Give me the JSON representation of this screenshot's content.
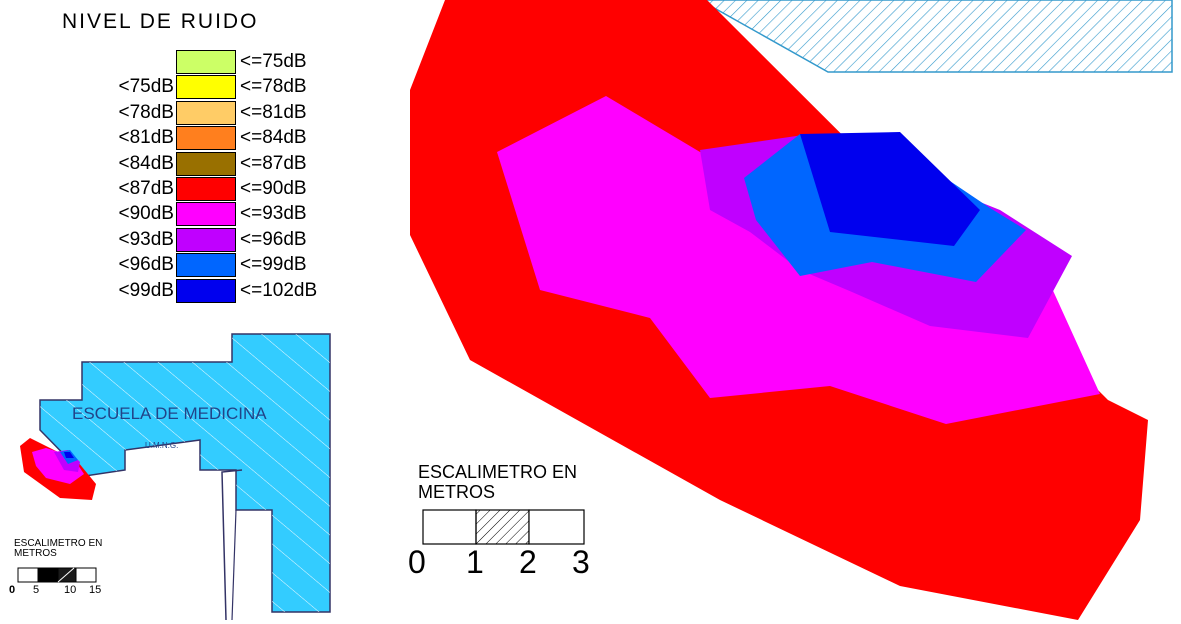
{
  "legend": {
    "title": "NIVEL DE RUIDO",
    "items": [
      {
        "low": "",
        "high": "<=75dB",
        "color": "#ccff66"
      },
      {
        "low": "<75dB",
        "high": "<=78dB",
        "color": "#ffff00"
      },
      {
        "low": "<78dB",
        "high": "<=81dB",
        "color": "#ffcc66"
      },
      {
        "low": "<81dB",
        "high": "<=84dB",
        "color": "#ff7f1e"
      },
      {
        "low": "<84dB",
        "high": "<=87dB",
        "color": "#997000"
      },
      {
        "low": "<87dB",
        "high": "<=90dB",
        "color": "#ff0000"
      },
      {
        "low": "<90dB",
        "high": "<=93dB",
        "color": "#ff00ff"
      },
      {
        "low": "<93dB",
        "high": "<=96dB",
        "color": "#c000ff"
      },
      {
        "low": "<96dB",
        "high": "<=99dB",
        "color": "#0066ff"
      },
      {
        "low": "<99dB",
        "high": "<=102dB",
        "color": "#0000ee"
      }
    ]
  },
  "building": {
    "name": "ESCUELA DE MEDICINA",
    "subtitle": "U.M.N.G.",
    "color": "#33ccff"
  },
  "small_scale": {
    "label_line1": "ESCALIMETRO EN",
    "label_line2": "METROS",
    "ticks": [
      "0",
      "5",
      "10",
      "15"
    ]
  },
  "big_scale": {
    "label_line1": "ESCALIMETRO EN",
    "label_line2": "METROS",
    "ticks": [
      "0",
      "1",
      "2",
      "3"
    ]
  },
  "hatch_color": "#3399cc"
}
